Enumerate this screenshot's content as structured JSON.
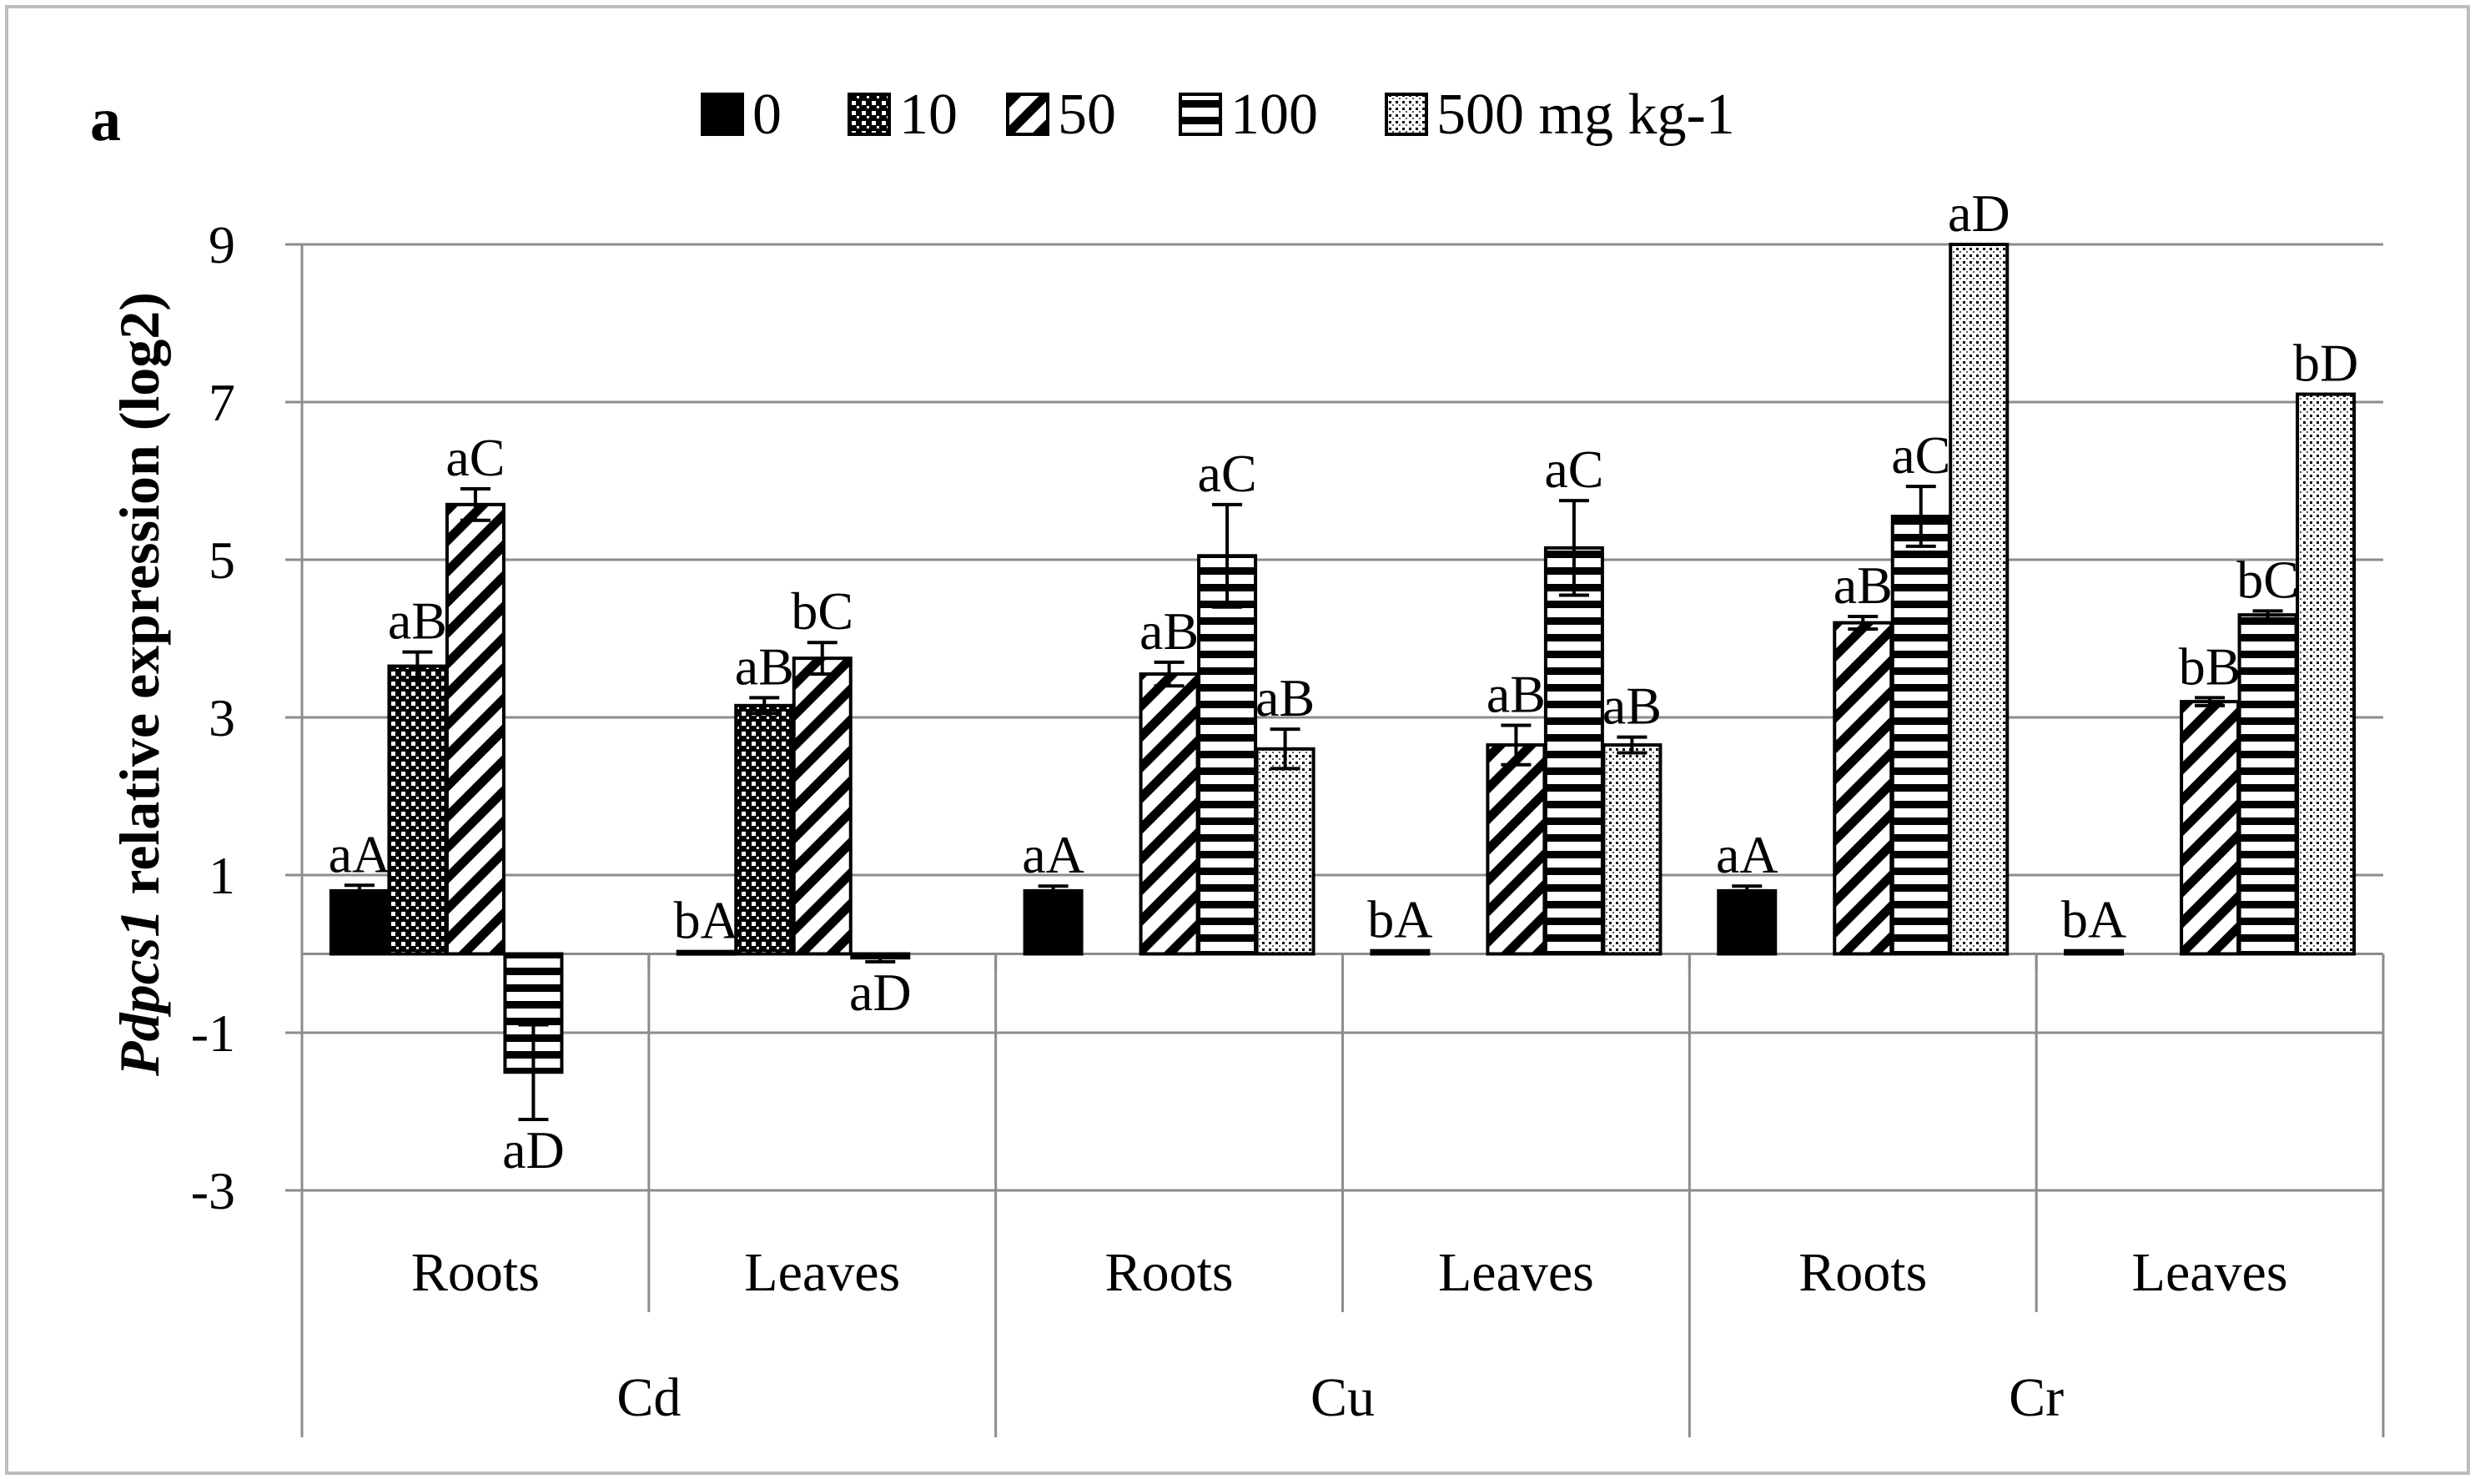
{
  "chart_data": {
    "type": "bar",
    "panel_label": "a",
    "ylabel_italic": "Pdpcs1",
    "ylabel_rest": " relative expression (log2)",
    "ylim": [
      -3,
      9
    ],
    "yticks": [
      "9",
      "7",
      "5",
      "3",
      "1",
      "-1",
      "-3"
    ],
    "ytick_values": [
      9,
      7,
      5,
      3,
      1,
      -1,
      -3
    ],
    "grid": true,
    "legend_position": "top",
    "series": [
      {
        "name": "0",
        "pattern": "solid"
      },
      {
        "name": "10",
        "pattern": "dots"
      },
      {
        "name": "50",
        "pattern": "diagonal"
      },
      {
        "name": "100",
        "pattern": "horizontal"
      },
      {
        "name": "500 mg kg-1",
        "pattern": "fine-dots"
      }
    ],
    "metals": [
      "Cd",
      "Cu",
      "Cr"
    ],
    "tissues": [
      "Roots",
      "Leaves"
    ],
    "groups": [
      {
        "metal": "Cd",
        "tissue": "Roots",
        "values": [
          0.8,
          3.65,
          5.7,
          -1.5,
          null
        ],
        "errors": [
          0.07,
          0.18,
          0.2,
          0.6,
          null
        ],
        "labels": [
          "aA",
          "aB",
          "aC",
          "aD",
          null
        ]
      },
      {
        "metal": "Cd",
        "tissue": "Leaves",
        "values": [
          0.03,
          3.15,
          3.75,
          -0.05,
          null
        ],
        "errors": [
          0.0,
          0.1,
          0.2,
          0.05,
          null
        ],
        "labels": [
          "bA",
          "aB",
          "bC",
          "aD",
          null
        ]
      },
      {
        "metal": "Cu",
        "tissue": "Roots",
        "values": [
          0.8,
          null,
          3.55,
          5.05,
          2.6
        ],
        "errors": [
          0.06,
          null,
          0.15,
          0.65,
          0.25
        ],
        "labels": [
          "aA",
          null,
          "aB",
          "aC",
          "aB"
        ]
      },
      {
        "metal": "Cu",
        "tissue": "Leaves",
        "values": [
          0.04,
          null,
          2.65,
          5.15,
          2.65
        ],
        "errors": [
          0.0,
          null,
          0.25,
          0.6,
          0.1
        ],
        "labels": [
          "bA",
          null,
          "aB",
          "aC",
          "aB"
        ]
      },
      {
        "metal": "Cr",
        "tissue": "Roots",
        "values": [
          0.8,
          null,
          4.2,
          5.55,
          9.0
        ],
        "errors": [
          0.06,
          null,
          0.08,
          0.38,
          0.0
        ],
        "labels": [
          "aA",
          null,
          "aB",
          "aC",
          "aD"
        ]
      },
      {
        "metal": "Cr",
        "tissue": "Leaves",
        "values": [
          0.04,
          null,
          3.2,
          4.3,
          7.1
        ],
        "errors": [
          0.0,
          null,
          0.05,
          0.05,
          0.0
        ],
        "labels": [
          "bA",
          null,
          "bB",
          "bC",
          "bD"
        ]
      }
    ]
  }
}
